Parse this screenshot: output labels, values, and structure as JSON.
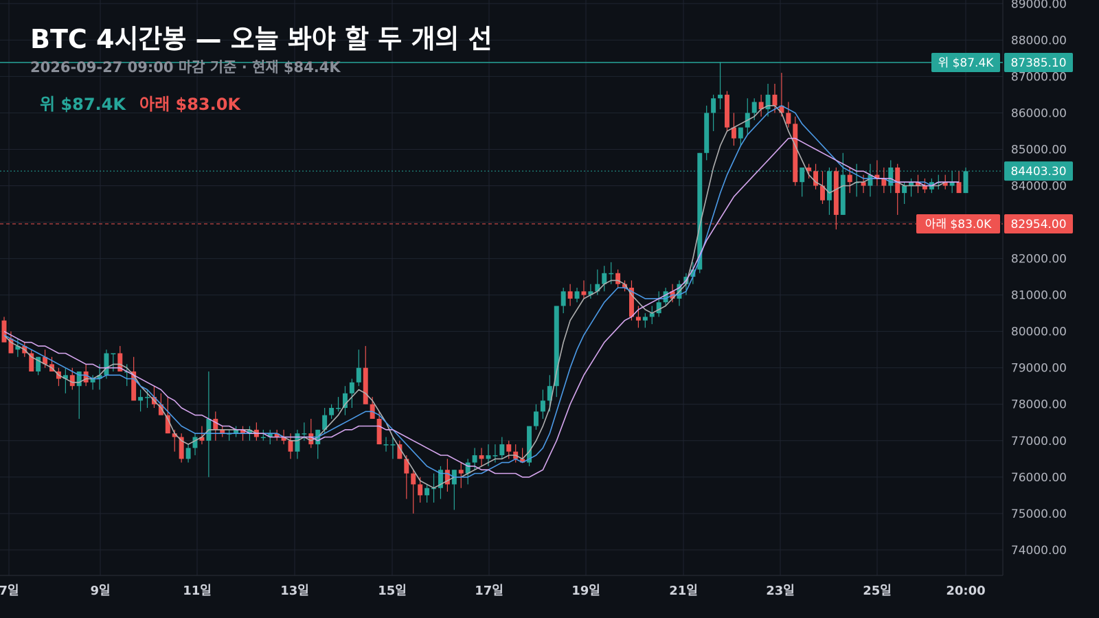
{
  "chart_data": {
    "type": "candlestick",
    "title": "BTC 4시간봉 — 오늘 봐야 할 두 개의 선",
    "subtitle": "2026-09-27 09:00 마감 기준 · 현재 $84.4K",
    "legend": {
      "upper": "위 $87.4K",
      "lower": "아래 $83.0K"
    },
    "ylim": [
      73300,
      89100
    ],
    "y_ticks": [
      "74000.00",
      "75000.00",
      "76000.00",
      "77000.00",
      "78000.00",
      "79000.00",
      "80000.00",
      "81000.00",
      "82000.00",
      "83000.00",
      "84000.00",
      "85000.00",
      "86000.00",
      "87000.00",
      "88000.00",
      "89000.00"
    ],
    "x_ticks": [
      "7일",
      "9일",
      "11일",
      "13일",
      "15일",
      "17일",
      "19일",
      "21일",
      "23일",
      "25일",
      "20:00"
    ],
    "levels": [
      {
        "name": "upper",
        "value": 87385.1,
        "price_label": "87385.10",
        "tag_label": "위 $87.4K",
        "color": "#26a69a",
        "style": "solid"
      },
      {
        "name": "lower",
        "value": 82954.0,
        "price_label": "82954.00",
        "tag_label": "아래 $83.0K",
        "color": "#ef5350",
        "style": "dashed"
      },
      {
        "name": "current",
        "value": 84403.3,
        "price_label": "84403.30",
        "color": "#26a69a",
        "style": "dotted"
      }
    ],
    "candles_ohlc": [
      [
        80300,
        80400,
        79700,
        79700
      ],
      [
        79800,
        80000,
        79400,
        79400
      ],
      [
        79500,
        79800,
        79300,
        79600
      ],
      [
        79600,
        79700,
        79300,
        79400
      ],
      [
        79400,
        79500,
        78900,
        78900
      ],
      [
        78900,
        79300,
        78800,
        79300
      ],
      [
        79300,
        79500,
        79000,
        79100
      ],
      [
        79100,
        79300,
        78900,
        78900
      ],
      [
        78900,
        79000,
        78500,
        78700
      ],
      [
        78700,
        79000,
        78300,
        78800
      ],
      [
        78800,
        79000,
        78400,
        78500
      ],
      [
        78500,
        78900,
        77600,
        78900
      ],
      [
        78900,
        79100,
        78500,
        78600
      ],
      [
        78600,
        78800,
        78400,
        78700
      ],
      [
        78700,
        79100,
        78400,
        78800
      ],
      [
        78800,
        79500,
        78700,
        79400
      ],
      [
        79400,
        79400,
        78900,
        79400
      ],
      [
        79400,
        79600,
        78900,
        78900
      ],
      [
        78900,
        79100,
        78500,
        78900
      ],
      [
        78900,
        79300,
        78100,
        78100
      ],
      [
        78100,
        78400,
        77800,
        78200
      ],
      [
        78200,
        78400,
        77900,
        78200
      ],
      [
        78200,
        78500,
        77900,
        78000
      ],
      [
        78000,
        78300,
        77700,
        77700
      ],
      [
        77700,
        78200,
        77200,
        77200
      ],
      [
        77200,
        77300,
        76700,
        77100
      ],
      [
        77100,
        77200,
        76400,
        76500
      ],
      [
        76500,
        76900,
        76400,
        76800
      ],
      [
        76800,
        77200,
        76600,
        77100
      ],
      [
        77100,
        77400,
        76900,
        77000
      ],
      [
        77000,
        78900,
        76000,
        77600
      ],
      [
        77600,
        77800,
        77000,
        77300
      ],
      [
        77300,
        77400,
        77100,
        77200
      ],
      [
        77200,
        77300,
        77000,
        77200
      ],
      [
        77200,
        77400,
        77100,
        77300
      ],
      [
        77300,
        77400,
        77000,
        77200
      ],
      [
        77200,
        77400,
        77000,
        77300
      ],
      [
        77300,
        77500,
        77000,
        77100
      ],
      [
        77100,
        77300,
        77000,
        77100
      ],
      [
        77100,
        77300,
        76900,
        77200
      ],
      [
        77200,
        77300,
        77000,
        77100
      ],
      [
        77100,
        77300,
        76900,
        77000
      ],
      [
        77000,
        77200,
        76500,
        76700
      ],
      [
        76700,
        77300,
        76500,
        77200
      ],
      [
        77200,
        77500,
        77000,
        77200
      ],
      [
        77200,
        77600,
        76800,
        76900
      ],
      [
        76900,
        77300,
        76500,
        77300
      ],
      [
        77300,
        77900,
        77200,
        77700
      ],
      [
        77700,
        78000,
        77600,
        77900
      ],
      [
        77900,
        78200,
        77800,
        77900
      ],
      [
        77900,
        78500,
        77700,
        78300
      ],
      [
        78300,
        78700,
        77900,
        78600
      ],
      [
        78600,
        79500,
        78500,
        79000
      ],
      [
        79000,
        79600,
        78000,
        78000
      ],
      [
        78000,
        78200,
        77600,
        77600
      ],
      [
        77600,
        77800,
        76900,
        76900
      ],
      [
        76900,
        77100,
        76700,
        76900
      ],
      [
        76900,
        77100,
        76500,
        76900
      ],
      [
        76900,
        77000,
        76500,
        76500
      ],
      [
        76500,
        76600,
        75400,
        76100
      ],
      [
        76100,
        76200,
        75000,
        75800
      ],
      [
        75800,
        76000,
        75300,
        75500
      ],
      [
        75500,
        75800,
        75300,
        75700
      ],
      [
        75700,
        76100,
        75300,
        75700
      ],
      [
        75700,
        76300,
        75400,
        76200
      ],
      [
        76200,
        76500,
        75600,
        75800
      ],
      [
        75800,
        76200,
        75100,
        76200
      ],
      [
        76200,
        76400,
        75700,
        76100
      ],
      [
        76100,
        76500,
        75800,
        76400
      ],
      [
        76400,
        76800,
        76200,
        76600
      ],
      [
        76600,
        76800,
        76300,
        76500
      ],
      [
        76500,
        76900,
        76300,
        76600
      ],
      [
        76600,
        76900,
        76400,
        76600
      ],
      [
        76600,
        77100,
        76500,
        76900
      ],
      [
        76900,
        77000,
        76500,
        76700
      ],
      [
        76700,
        76900,
        76400,
        76500
      ],
      [
        76500,
        76800,
        76400,
        76400
      ],
      [
        76400,
        77400,
        76300,
        77400
      ],
      [
        77400,
        78000,
        77300,
        77800
      ],
      [
        77800,
        78400,
        77600,
        78100
      ],
      [
        78100,
        78800,
        77800,
        78500
      ],
      [
        78500,
        80700,
        78200,
        80700
      ],
      [
        80700,
        81200,
        80500,
        81100
      ],
      [
        81100,
        81300,
        80700,
        80900
      ],
      [
        80900,
        81200,
        80800,
        81100
      ],
      [
        81100,
        81400,
        80900,
        81000
      ],
      [
        81000,
        81300,
        80900,
        81100
      ],
      [
        81100,
        81700,
        81000,
        81300
      ],
      [
        81300,
        81800,
        81100,
        81600
      ],
      [
        81600,
        81900,
        81300,
        81600
      ],
      [
        81600,
        81700,
        81200,
        81300
      ],
      [
        81300,
        81400,
        81100,
        81200
      ],
      [
        81200,
        81400,
        80300,
        80400
      ],
      [
        80400,
        80700,
        80100,
        80300
      ],
      [
        80300,
        80500,
        80100,
        80400
      ],
      [
        80400,
        80700,
        80200,
        80500
      ],
      [
        80500,
        81100,
        80400,
        80800
      ],
      [
        80800,
        81200,
        80700,
        81100
      ],
      [
        81100,
        81300,
        80800,
        80900
      ],
      [
        80900,
        81400,
        80700,
        81300
      ],
      [
        81300,
        81600,
        81000,
        81500
      ],
      [
        81500,
        81900,
        81300,
        81700
      ],
      [
        81700,
        84900,
        81600,
        84900
      ],
      [
        84900,
        86200,
        84700,
        86000
      ],
      [
        86000,
        86500,
        85500,
        86400
      ],
      [
        86400,
        87400,
        86100,
        86500
      ],
      [
        86500,
        86600,
        85500,
        85600
      ],
      [
        85600,
        86000,
        85100,
        85300
      ],
      [
        85300,
        85600,
        85100,
        85600
      ],
      [
        85600,
        86400,
        85400,
        86000
      ],
      [
        86000,
        86400,
        85800,
        86300
      ],
      [
        86300,
        86500,
        85900,
        86100
      ],
      [
        86100,
        86800,
        85900,
        86500
      ],
      [
        86500,
        86800,
        86000,
        86200
      ],
      [
        86200,
        87100,
        85900,
        86000
      ],
      [
        86000,
        86300,
        85600,
        85700
      ],
      [
        85700,
        85900,
        84000,
        84100
      ],
      [
        84100,
        84500,
        83700,
        84500
      ],
      [
        84500,
        84600,
        84200,
        84400
      ],
      [
        84400,
        84600,
        83900,
        84000
      ],
      [
        84000,
        84400,
        83500,
        83600
      ],
      [
        83600,
        84500,
        83200,
        84400
      ],
      [
        84400,
        84500,
        82800,
        83200
      ],
      [
        83200,
        84900,
        83200,
        84300
      ],
      [
        84300,
        84500,
        83800,
        84100
      ],
      [
        84100,
        84600,
        83700,
        84100
      ],
      [
        84100,
        84300,
        83800,
        84000
      ],
      [
        84000,
        84600,
        83700,
        84300
      ],
      [
        84300,
        84700,
        84000,
        84200
      ],
      [
        84200,
        84500,
        83800,
        84000
      ],
      [
        84000,
        84700,
        83800,
        84500
      ],
      [
        84500,
        84600,
        83200,
        83800
      ],
      [
        83800,
        84100,
        83500,
        84000
      ],
      [
        84000,
        84200,
        83700,
        84100
      ],
      [
        84100,
        84300,
        83800,
        84000
      ],
      [
        84000,
        84200,
        83800,
        83900
      ],
      [
        83900,
        84200,
        83800,
        84100
      ],
      [
        84100,
        84300,
        83900,
        84100
      ],
      [
        84100,
        84300,
        83900,
        84000
      ],
      [
        84000,
        84400,
        83800,
        84100
      ],
      [
        84100,
        84400,
        83900,
        83800
      ],
      [
        83800,
        84500,
        83800,
        84400
      ]
    ],
    "series": [
      {
        "color": "#b0b0b0",
        "values": [
          79900,
          79700,
          79600,
          79500,
          79300,
          79200,
          79100,
          79000,
          78800,
          78700,
          78600,
          78600,
          78700,
          78700,
          78800,
          79000,
          79100,
          79100,
          79000,
          78800,
          78500,
          78300,
          78100,
          77900,
          77600,
          77200,
          77000,
          76900,
          77000,
          77100,
          77300,
          77300,
          77300,
          77300,
          77300,
          77300,
          77300,
          77200,
          77200,
          77200,
          77200,
          77100,
          77000,
          77000,
          77100,
          77000,
          77100,
          77300,
          77500,
          77700,
          78000,
          78200,
          78400,
          78300,
          78100,
          77800,
          77500,
          77100,
          76800,
          76500,
          76200,
          75900,
          75800,
          75700,
          75800,
          75900,
          76000,
          76000,
          76100,
          76200,
          76300,
          76400,
          76500,
          76500,
          76600,
          76600,
          76500,
          76700,
          77000,
          77400,
          77900,
          78900,
          79700,
          80300,
          80600,
          80900,
          81000,
          81100,
          81300,
          81400,
          81400,
          81300,
          81000,
          80800,
          80600,
          80500,
          80600,
          80700,
          80900,
          81100,
          81300,
          82000,
          82900,
          83700,
          84500,
          85100,
          85500,
          85600,
          85700,
          85800,
          85900,
          86100,
          86200,
          86200,
          86000,
          85500,
          85100,
          84700,
          84300,
          84100,
          84000,
          83800,
          83900,
          84000,
          84000,
          84100,
          84100,
          84200,
          84200,
          84200,
          84100,
          84100,
          84000,
          84000,
          84000,
          84000,
          84000,
          84000,
          84100,
          84100,
          84100
        ]
      },
      {
        "color": "#4c9be8",
        "values": [
          79900,
          79800,
          79700,
          79600,
          79500,
          79400,
          79300,
          79200,
          79100,
          79000,
          78900,
          78800,
          78800,
          78700,
          78700,
          78800,
          78800,
          78800,
          78700,
          78700,
          78500,
          78400,
          78200,
          78000,
          77800,
          77600,
          77400,
          77300,
          77200,
          77200,
          77200,
          77200,
          77200,
          77200,
          77200,
          77200,
          77200,
          77200,
          77200,
          77200,
          77200,
          77100,
          77100,
          77100,
          77100,
          77100,
          77100,
          77200,
          77300,
          77400,
          77500,
          77600,
          77700,
          77800,
          77800,
          77700,
          77500,
          77300,
          77100,
          76900,
          76700,
          76500,
          76300,
          76200,
          76100,
          76100,
          76000,
          76000,
          76000,
          76100,
          76100,
          76200,
          76300,
          76400,
          76400,
          76500,
          76400,
          76500,
          76600,
          76800,
          77200,
          77800,
          78400,
          79000,
          79500,
          79900,
          80200,
          80500,
          80800,
          81000,
          81200,
          81200,
          81100,
          81000,
          80900,
          80900,
          80900,
          80900,
          81000,
          81000,
          81100,
          81500,
          82000,
          82600,
          83200,
          83800,
          84300,
          84700,
          85100,
          85400,
          85600,
          85800,
          86000,
          86100,
          86200,
          86100,
          86000,
          85700,
          85500,
          85300,
          85100,
          84900,
          84700,
          84500,
          84400,
          84300,
          84200,
          84200,
          84200,
          84200,
          84100,
          84100,
          84100,
          84100,
          84100,
          84100,
          84000,
          84100,
          84100,
          84100,
          84100
        ]
      },
      {
        "color": "#d7a7f0",
        "values": [
          80000,
          79900,
          79800,
          79700,
          79700,
          79600,
          79600,
          79500,
          79400,
          79400,
          79300,
          79200,
          79100,
          79100,
          79000,
          79000,
          79000,
          79000,
          78900,
          78800,
          78700,
          78600,
          78500,
          78400,
          78200,
          78100,
          77900,
          77800,
          77700,
          77700,
          77600,
          77500,
          77400,
          77400,
          77300,
          77300,
          77200,
          77200,
          77200,
          77100,
          77100,
          77100,
          77100,
          77100,
          77100,
          77100,
          77000,
          77100,
          77100,
          77200,
          77300,
          77300,
          77400,
          77400,
          77400,
          77400,
          77300,
          77300,
          77200,
          77100,
          77000,
          76900,
          76800,
          76700,
          76600,
          76600,
          76500,
          76400,
          76300,
          76300,
          76200,
          76200,
          76100,
          76100,
          76100,
          76100,
          76000,
          76000,
          76100,
          76200,
          76600,
          77000,
          77500,
          78000,
          78400,
          78800,
          79100,
          79400,
          79700,
          79900,
          80100,
          80300,
          80400,
          80600,
          80700,
          80800,
          80900,
          81000,
          81100,
          81200,
          81400,
          81700,
          82100,
          82500,
          82800,
          83100,
          83400,
          83700,
          83900,
          84100,
          84300,
          84500,
          84700,
          84900,
          85100,
          85300,
          85300,
          85200,
          85100,
          85000,
          84900,
          84800,
          84700,
          84600,
          84500,
          84400,
          84400,
          84300,
          84200,
          84200,
          84200,
          84100,
          84100,
          84100,
          84100,
          84000,
          84000,
          84100,
          84100,
          84100,
          84100
        ]
      }
    ]
  }
}
